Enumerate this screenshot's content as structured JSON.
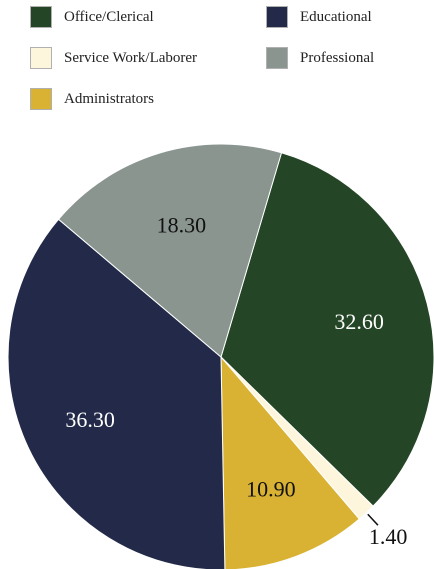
{
  "chart_data": {
    "type": "pie",
    "categories": [
      "Office/Clerical",
      "Service Work/Laborer",
      "Administrators",
      "Educational",
      "Professional"
    ],
    "values": [
      32.6,
      1.4,
      10.9,
      36.3,
      18.3
    ],
    "value_labels": [
      "32.60",
      "1.40",
      "10.90",
      "36.30",
      "18.30"
    ],
    "colors": [
      "#244626",
      "#fdf6dd",
      "#d9b233",
      "#232a49",
      "#8a9590"
    ],
    "label_colors": [
      "#ffffff",
      "#111111",
      "#111111",
      "#ffffff",
      "#111111"
    ],
    "legend": {
      "placement": "top",
      "entries": [
        {
          "label": "Office/Clerical",
          "color": "#244626"
        },
        {
          "label": "Educational",
          "color": "#232a49"
        },
        {
          "label": "Service Work/Laborer",
          "color": "#fdf6dd"
        },
        {
          "label": "Professional",
          "color": "#8a9590"
        },
        {
          "label": "Administrators",
          "color": "#d9b233"
        }
      ]
    }
  }
}
